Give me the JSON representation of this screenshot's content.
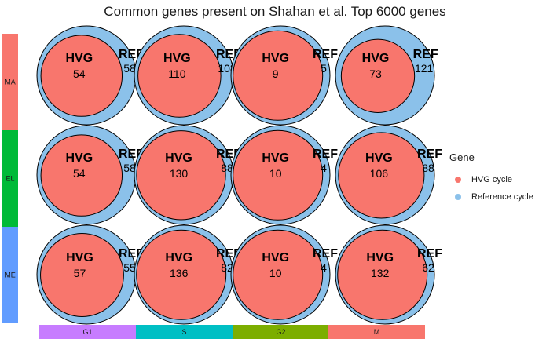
{
  "chart_data": {
    "type": "venn",
    "title": "Common genes present on Shahan et al. Top 6000 genes",
    "columns": [
      "G1",
      "S",
      "G2",
      "M"
    ],
    "rows": [
      "MA",
      "EL",
      "ME"
    ],
    "hvg_label": "HVG",
    "ref_label": "REF",
    "cells": [
      [
        {
          "hvg": 54,
          "ref": 58
        },
        {
          "hvg": 110,
          "ref": 108
        },
        {
          "hvg": 9,
          "ref": 5
        },
        {
          "hvg": 73,
          "ref": 121
        }
      ],
      [
        {
          "hvg": 54,
          "ref": 58
        },
        {
          "hvg": 130,
          "ref": 88
        },
        {
          "hvg": 10,
          "ref": 4
        },
        {
          "hvg": 106,
          "ref": 88
        }
      ],
      [
        {
          "hvg": 57,
          "ref": 55
        },
        {
          "hvg": 136,
          "ref": 82
        },
        {
          "hvg": 10,
          "ref": 4
        },
        {
          "hvg": 132,
          "ref": 62
        }
      ]
    ],
    "legend": {
      "title": "Gene",
      "entries": [
        {
          "label": "HVG cycle",
          "color": "#F8766D"
        },
        {
          "label": "Reference cycle",
          "color": "#8BC1EA"
        }
      ]
    },
    "row_strip_colors": [
      "#F8766D",
      "#00BA38",
      "#619CFF"
    ],
    "column_strip_colors": [
      "#C77CFF",
      "#00BFC4",
      "#7CAE00",
      "#F8766D"
    ]
  }
}
